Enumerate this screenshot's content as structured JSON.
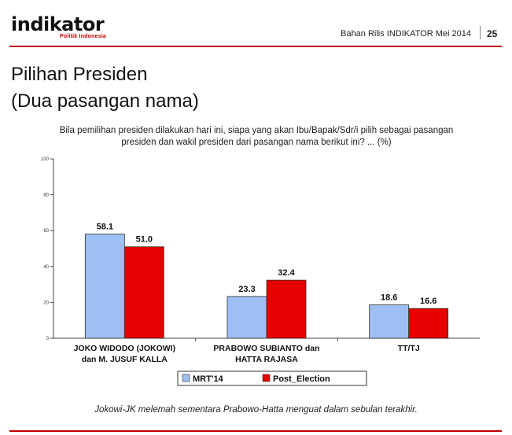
{
  "header": {
    "logo_text": "indikator",
    "logo_tagline": "Politik Indonesia",
    "release_text": "Bahan Rilis INDIKATOR Mei 2014",
    "page_number": "25"
  },
  "slide": {
    "title": "Pilihan Presiden",
    "subtitle": "(Dua pasangan nama)",
    "question_line1": "Bila pemilihan presiden dilakukan hari ini, siapa yang akan Ibu/Bapak/Sdr/i pilih sebagai pasangan",
    "question_line2": "presiden dan wakil presiden dari  pasangan nama berikut ini? ... (%)",
    "footnote": "Jokowi-JK melemah sementara Prabowo-Hatta menguat dalam sebulan terakhir."
  },
  "colors": {
    "accent": "#c00000",
    "series1": "#9ebff2",
    "series2": "#e60000"
  },
  "chart_data": {
    "type": "bar",
    "categories": [
      [
        "JOKO WIDODO (JOKOWI)",
        "dan M. JUSUF KALLA"
      ],
      [
        "PRABOWO SUBIANTO dan",
        "HATTA RAJASA"
      ],
      [
        "TT/TJ"
      ]
    ],
    "series": [
      {
        "name": "MRT'14",
        "values": [
          58.1,
          23.3,
          18.6
        ],
        "color": "#9ebff2"
      },
      {
        "name": "Post_Election",
        "values": [
          51.0,
          32.4,
          16.6
        ],
        "color": "#e60000"
      }
    ],
    "ylim": [
      0,
      100
    ],
    "yticks": [
      0,
      20,
      40,
      60,
      80,
      100
    ],
    "grid": false,
    "legend": "bottom",
    "data_labels": true
  }
}
